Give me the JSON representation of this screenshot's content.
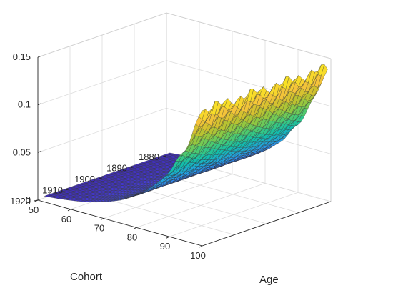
{
  "chart_data": {
    "type": "surface",
    "title": "",
    "xlabel": "Age",
    "ylabel": "Cohort",
    "zlabel": "",
    "xlim": [
      50,
      100
    ],
    "ylim": [
      1880,
      1920
    ],
    "zlim": [
      0,
      0.15
    ],
    "x_ticks": [
      "50",
      "60",
      "70",
      "80",
      "90",
      "100"
    ],
    "y_ticks": [
      "1880",
      "1890",
      "1900",
      "1910",
      "1920"
    ],
    "z_ticks": [
      "0",
      "0.05",
      "0.1",
      "0.15"
    ],
    "grid": true,
    "colormap": [
      "#3e26a8",
      "#4743e7",
      "#3a6bfe",
      "#2d8df3",
      "#1fa8d6",
      "#12bdab",
      "#3fc97a",
      "#87c945",
      "#c7c02b",
      "#f5c33a",
      "#f9e622"
    ],
    "edge_color": "#333333",
    "surface": {
      "x_range": [
        51,
        99
      ],
      "y_range": [
        1880,
        1919
      ],
      "z_at_age_51": 0.004,
      "z_at_age_99": 0.14,
      "growth": "exponential in age, nearly flat across cohort"
    }
  }
}
